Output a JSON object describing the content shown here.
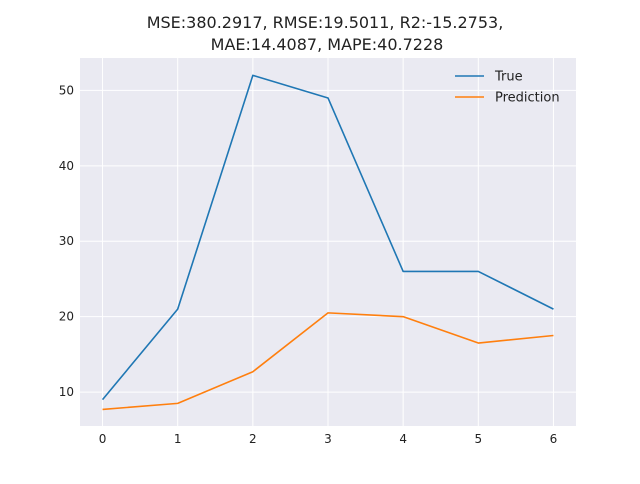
{
  "chart_data": {
    "type": "line",
    "title_line1": "MSE:380.2917, RMSE:19.5011, R2:-15.2753,",
    "title_line2": "MAE:14.4087, MAPE:40.7228",
    "xlabel": "",
    "ylabel": "",
    "x": [
      0,
      1,
      2,
      3,
      4,
      5,
      6
    ],
    "x_ticks": [
      "0",
      "1",
      "2",
      "3",
      "4",
      "5",
      "6"
    ],
    "y_ticks": [
      "10",
      "20",
      "30",
      "40",
      "50"
    ],
    "xlim": [
      -0.3,
      6.3
    ],
    "ylim": [
      5.5,
      54.3
    ],
    "grid": true,
    "legend_position": "top-right",
    "background": "#eaeaf2",
    "series": [
      {
        "name": "True",
        "color": "#1f77b4",
        "values": [
          9,
          21,
          52,
          49,
          26,
          26,
          21
        ]
      },
      {
        "name": "Prediction",
        "color": "#ff7f0e",
        "values": [
          7.7,
          8.5,
          12.7,
          20.5,
          20.0,
          16.5,
          17.5
        ]
      }
    ]
  }
}
